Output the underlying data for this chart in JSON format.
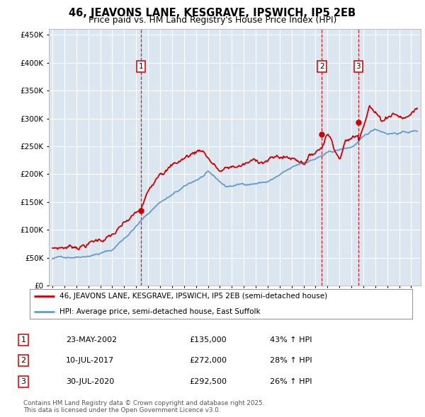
{
  "title": "46, JEAVONS LANE, KESGRAVE, IPSWICH, IP5 2EB",
  "subtitle": "Price paid vs. HM Land Registry's House Price Index (HPI)",
  "legend_line1": "46, JEAVONS LANE, KESGRAVE, IPSWICH, IP5 2EB (semi-detached house)",
  "legend_line2": "HPI: Average price, semi-detached house, East Suffolk",
  "footer": "Contains HM Land Registry data © Crown copyright and database right 2025.\nThis data is licensed under the Open Government Licence v3.0.",
  "transactions": [
    {
      "num": 1,
      "date": "23-MAY-2002",
      "price": "£135,000",
      "hpi_pct": "43% ↑ HPI",
      "x_year": 2002.39,
      "price_val": 135000
    },
    {
      "num": 2,
      "date": "10-JUL-2017",
      "price": "£272,000",
      "hpi_pct": "28% ↑ HPI",
      "x_year": 2017.53,
      "price_val": 272000
    },
    {
      "num": 3,
      "date": "30-JUL-2020",
      "price": "£292,500",
      "hpi_pct": "26% ↑ HPI",
      "x_year": 2020.58,
      "price_val": 292500
    }
  ],
  "red_color": "#cc0000",
  "blue_color": "#6699cc",
  "bg_color": "#dce6f0",
  "grid_color": "#ffffff",
  "ylim": [
    0,
    460000
  ],
  "xlim_start": 1994.7,
  "xlim_end": 2025.8,
  "yticks": [
    0,
    50000,
    100000,
    150000,
    200000,
    250000,
    300000,
    350000,
    400000,
    450000
  ]
}
